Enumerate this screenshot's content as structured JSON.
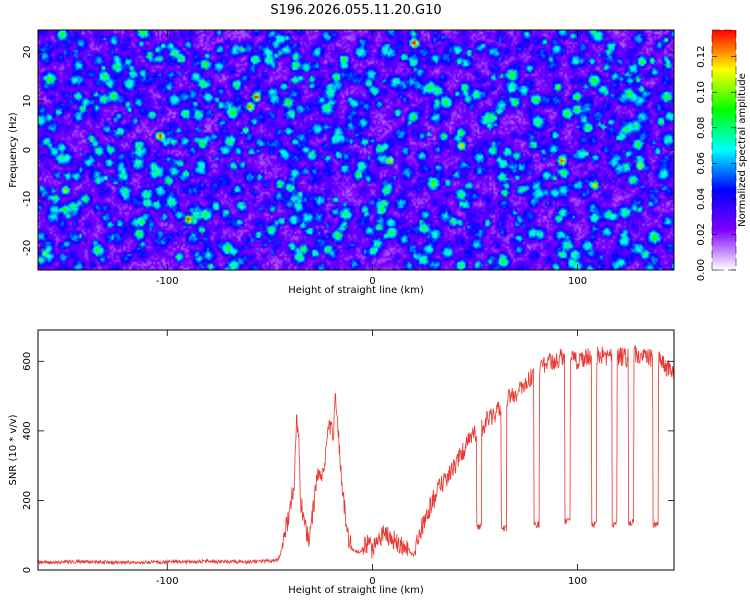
{
  "title": "S196.2026.055.11.20.G10",
  "chart_data": [
    {
      "type": "heatmap",
      "xlabel": "Height of straight line (km)",
      "ylabel": "Frequency (Hz)",
      "xlim": [
        -163,
        147
      ],
      "ylim": [
        -24.5,
        24.5
      ],
      "xticks": [
        -100,
        0,
        100
      ],
      "xtick_labels": [
        "-100",
        "0",
        "100"
      ],
      "yticks": [
        -20,
        -10,
        0,
        10,
        20
      ],
      "ytick_labels": [
        "-20",
        "-10",
        "0",
        "10",
        "20"
      ],
      "colorbar": {
        "label": "Normalized spectral amplitude",
        "range": [
          0,
          0.135
        ],
        "ticks": [
          0,
          0.02,
          0.04,
          0.06,
          0.08,
          0.1,
          0.12
        ],
        "tick_labels": [
          "0.00",
          "0.02",
          "0.04",
          "0.06",
          "0.08",
          "0.10",
          "0.12"
        ],
        "colormap": [
          "#ffffff",
          "#8000ff",
          "#0000ff",
          "#00ffff",
          "#00ff00",
          "#ffff00",
          "#ff0000"
        ]
      },
      "field": {
        "description": "speckled noise field",
        "background_level": 0.02,
        "peaks": [
          {
            "x": 20,
            "y": 22,
            "value": 0.13
          },
          {
            "x": -57,
            "y": 11,
            "value": 0.12
          },
          {
            "x": -104,
            "y": 3,
            "value": 0.12
          },
          {
            "x": 92,
            "y": -2,
            "value": 0.12
          },
          {
            "x": -90,
            "y": -14,
            "value": 0.12
          },
          {
            "x": -60,
            "y": 9,
            "value": 0.11
          },
          {
            "x": 8,
            "y": -2,
            "value": 0.1
          },
          {
            "x": 43,
            "y": 1,
            "value": 0.1
          },
          {
            "x": 108,
            "y": -7,
            "value": 0.1
          },
          {
            "x": -150,
            "y": -8,
            "value": 0.09
          },
          {
            "x": 130,
            "y": -3,
            "value": 0.09
          },
          {
            "x": 90,
            "y": 13,
            "value": 0.08
          },
          {
            "x": -160,
            "y": -21,
            "value": 0.08
          },
          {
            "x": 70,
            "y": -1,
            "value": 0.07
          },
          {
            "x": -130,
            "y": 15,
            "value": 0.07
          },
          {
            "x": 140,
            "y": 6,
            "value": 0.07
          }
        ]
      }
    },
    {
      "type": "line",
      "xlabel": "Height of straight line (km)",
      "ylabel": "SNR (10 * v/v)",
      "xlim": [
        -163,
        147
      ],
      "ylim": [
        0,
        690
      ],
      "xticks": [
        -100,
        0,
        100
      ],
      "xtick_labels": [
        "-100",
        "0",
        "100"
      ],
      "yticks": [
        0,
        200,
        400,
        600
      ],
      "ytick_labels": [
        "0",
        "200",
        "400",
        "600"
      ],
      "series": [
        {
          "name": "SNR",
          "color": "#e8382f",
          "x": [
            -163,
            -140,
            -120,
            -100,
            -80,
            -60,
            -46,
            -44,
            -42,
            -40,
            -38,
            -37,
            -36,
            -35,
            -33,
            -31,
            -29,
            -27,
            -25,
            -23,
            -21,
            -19,
            -18,
            -17,
            -15,
            -12,
            -10,
            -6,
            -3,
            0,
            3,
            6,
            8,
            12,
            16,
            20,
            24,
            28,
            32,
            36,
            40,
            44,
            48,
            52,
            56,
            60,
            64,
            68,
            72,
            76,
            80,
            84,
            88,
            92,
            96,
            100,
            104,
            108,
            112,
            116,
            120,
            124,
            128,
            132,
            136,
            140,
            144,
            147
          ],
          "values": [
            22,
            24,
            21,
            23,
            25,
            23,
            28,
            60,
            120,
            180,
            260,
            430,
            380,
            200,
            130,
            90,
            160,
            280,
            250,
            320,
            420,
            380,
            520,
            430,
            250,
            100,
            60,
            50,
            80,
            60,
            90,
            110,
            95,
            80,
            70,
            40,
            120,
            180,
            230,
            260,
            300,
            340,
            380,
            400,
            430,
            450,
            480,
            500,
            520,
            550,
            560,
            590,
            600,
            610,
            600,
            605,
            610,
            615,
            620,
            610,
            615,
            610,
            620,
            615,
            610,
            600,
            580,
            560
          ],
          "dropouts": [
            {
              "x": 52,
              "depth": 125
            },
            {
              "x": 64,
              "depth": 120
            },
            {
              "x": 80,
              "depth": 130
            },
            {
              "x": 95,
              "depth": 140
            },
            {
              "x": 108,
              "depth": 130
            },
            {
              "x": 118,
              "depth": 130
            },
            {
              "x": 126,
              "depth": 135
            },
            {
              "x": 138,
              "depth": 130
            }
          ]
        }
      ]
    }
  ]
}
